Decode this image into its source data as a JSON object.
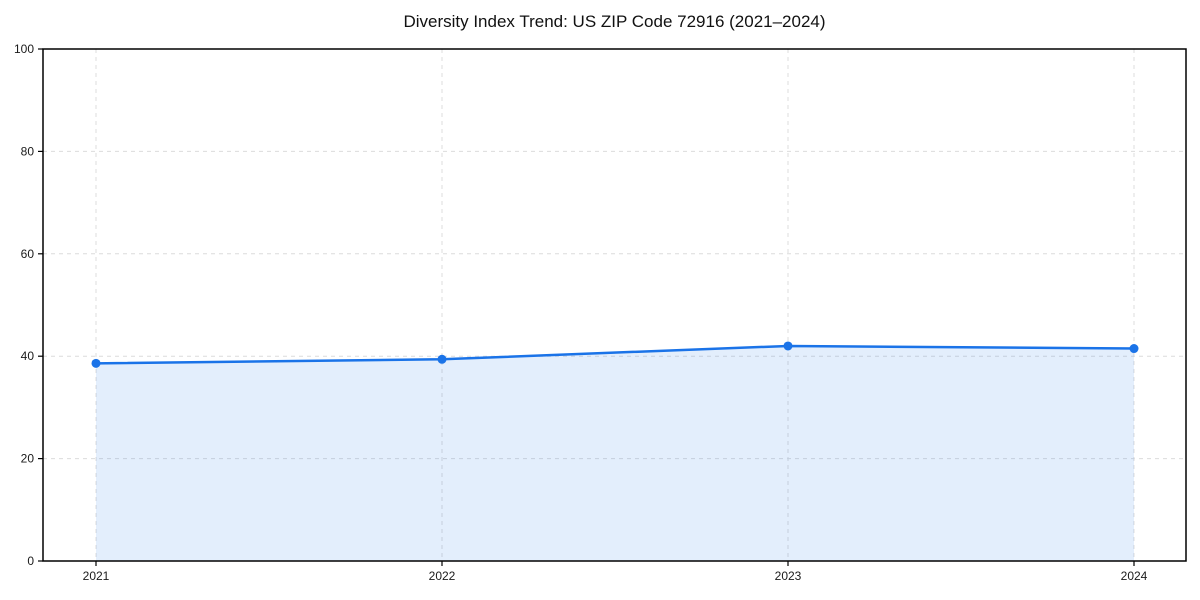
{
  "chart_data": {
    "type": "area",
    "title": "Diversity Index Trend: US ZIP Code 72916 (2021–2024)",
    "x": [
      "2021",
      "2022",
      "2023",
      "2024"
    ],
    "series": [
      {
        "name": "Diversity Index",
        "values": [
          38.6,
          39.4,
          42.0,
          41.5
        ]
      }
    ],
    "xlabel": "",
    "ylabel": "",
    "ylim": [
      0,
      100
    ],
    "yticks": [
      0,
      20,
      40,
      60,
      80,
      100
    ],
    "grid": "dashed",
    "legend": "none",
    "marker": "circle",
    "colors": {
      "line": "#1a73e8",
      "marker": "#1a73e8",
      "fill": "#1a73e8",
      "fill_opacity": 0.12,
      "grid": "#dcdcdc",
      "axis": "#000000",
      "tick_label": "#1a1a1a",
      "title": "#111111"
    }
  }
}
